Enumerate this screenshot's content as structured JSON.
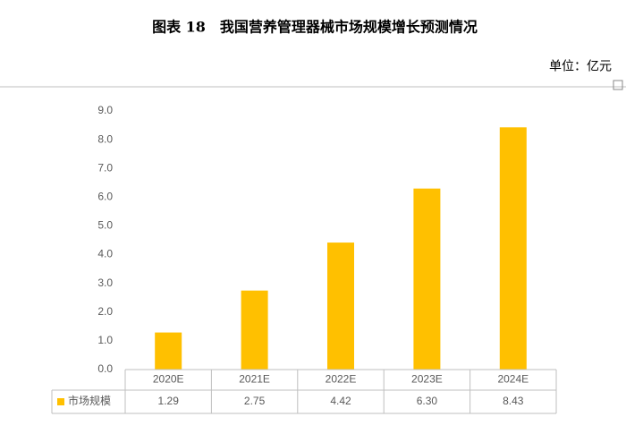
{
  "chart_data": {
    "type": "bar",
    "title": "图表 18　我国营养管理器械市场规模增长预测情况",
    "unit_label": "单位：亿元",
    "categories": [
      "2020E",
      "2021E",
      "2022E",
      "2023E",
      "2024E"
    ],
    "series": [
      {
        "name": "市场规模",
        "color": "#ffc000",
        "values": [
          1.29,
          2.75,
          4.42,
          6.3,
          8.43
        ],
        "value_labels": [
          "1.29",
          "2.75",
          "4.42",
          "6.30",
          "8.43"
        ]
      }
    ],
    "ylim": [
      0,
      9
    ],
    "yticks": [
      {
        "value": 0,
        "label": "0.0"
      },
      {
        "value": 1,
        "label": "1.0"
      },
      {
        "value": 2,
        "label": "2.0"
      },
      {
        "value": 3,
        "label": "3.0"
      },
      {
        "value": 4,
        "label": "4.0"
      },
      {
        "value": 5,
        "label": "5.0"
      },
      {
        "value": 6,
        "label": "6.0"
      },
      {
        "value": 7,
        "label": "7.0"
      },
      {
        "value": 8,
        "label": "8.0"
      },
      {
        "value": 9,
        "label": "9.0"
      }
    ],
    "grid": false,
    "data_table": true
  }
}
